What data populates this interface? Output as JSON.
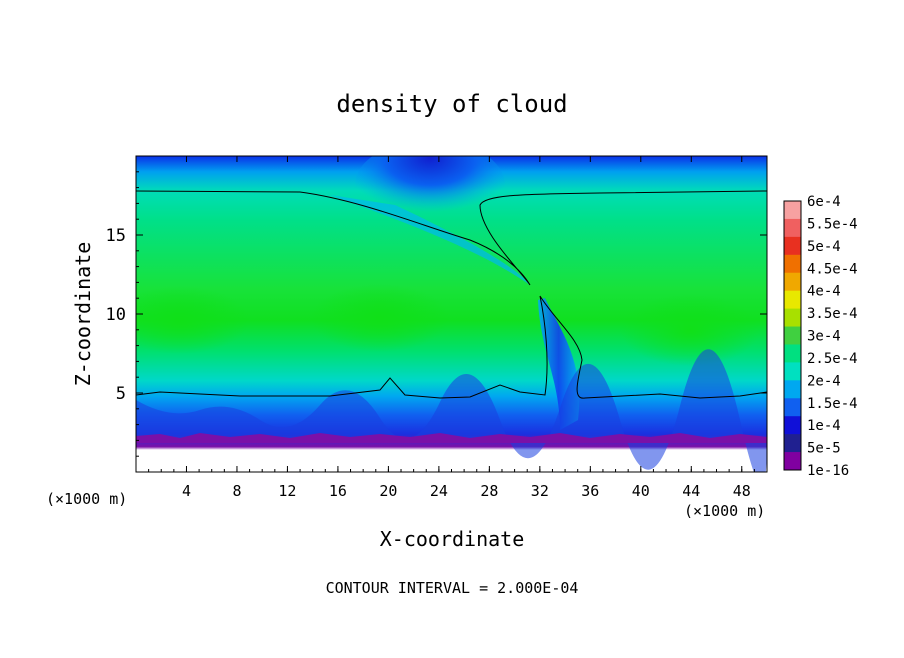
{
  "chart_data": {
    "type": "heatmap",
    "title": "density of cloud",
    "xlabel": "X-coordinate",
    "ylabel": "Z-coordinate",
    "x_unit_left": "(×1000 m)",
    "x_unit_right": "(×1000 m)",
    "xlim": [
      0,
      50
    ],
    "ylim": [
      0,
      20
    ],
    "x_ticks": [
      "4",
      "8",
      "12",
      "16",
      "20",
      "24",
      "28",
      "32",
      "36",
      "40",
      "44",
      "48"
    ],
    "x_tick_values": [
      4,
      8,
      12,
      16,
      20,
      24,
      28,
      32,
      36,
      40,
      44,
      48
    ],
    "y_ticks": [
      "5",
      "10",
      "15"
    ],
    "y_tick_values": [
      5,
      10,
      15
    ],
    "footer": "CONTOUR INTERVAL = 2.000E-04",
    "colorbar": {
      "labels": [
        "6e-4",
        "5.5e-4",
        "5e-4",
        "4.5e-4",
        "4e-4",
        "3.5e-4",
        "3e-4",
        "2.5e-4",
        "2e-4",
        "1.5e-4",
        "1e-4",
        "5e-5",
        "1e-16"
      ],
      "colors": [
        "#f7a1a1",
        "#f06060",
        "#e83020",
        "#f07000",
        "#f0a800",
        "#e8e800",
        "#a8e000",
        "#40d040",
        "#00e080",
        "#00e0c0",
        "#00a8f0",
        "#1060f0",
        "#1010d8",
        "#202090",
        "#8000a0"
      ]
    },
    "colors": {
      "background_band": "#00dc6a",
      "mid_band": "#14e014",
      "low_cloud": "#1a50e8",
      "top_layer": "#0a2ae0",
      "ground": "#7a10a8"
    }
  }
}
